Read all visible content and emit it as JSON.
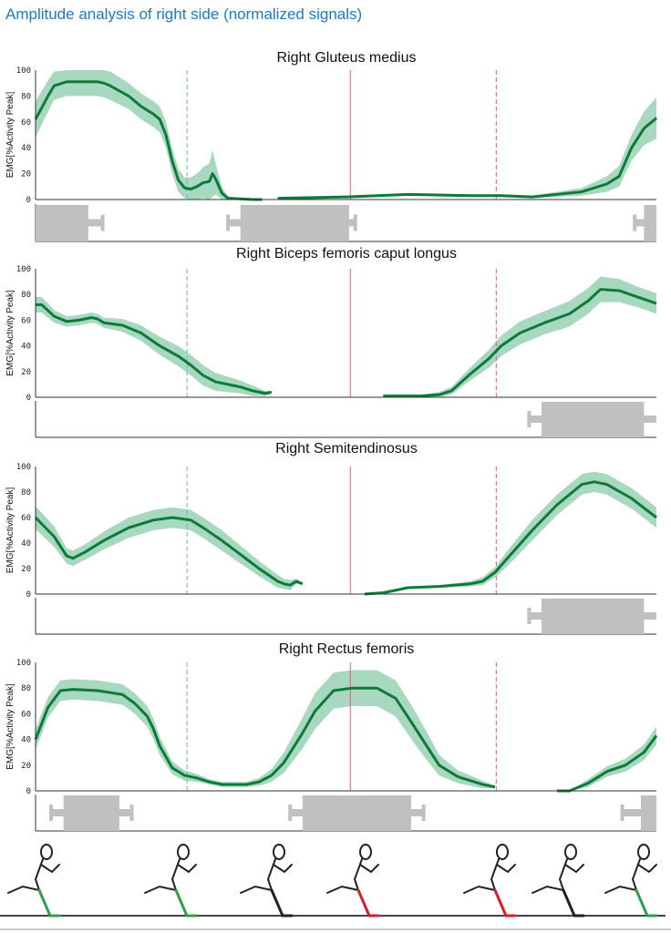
{
  "title": "Amplitude analysis of right side (normalized signals)",
  "chart_data": [
    {
      "type": "line",
      "title": "Right Gluteus medius",
      "ylabel": "EMG[%Activity  Peak]",
      "ylim": [
        0,
        100
      ],
      "yticks": [
        0,
        20,
        40,
        60,
        80,
        100
      ],
      "xlim": [
        0,
        100
      ],
      "markers": {
        "green_dashed": 24.4,
        "red_solid": 50.7,
        "red_dashed": 74.2
      },
      "series": [
        {
          "points": [
            [
              0,
              62,
              14
            ],
            [
              2,
              80,
              12
            ],
            [
              3,
              88,
              11
            ],
            [
              5,
              91,
              11
            ],
            [
              10,
              91,
              11
            ],
            [
              11,
              90,
              11
            ],
            [
              12,
              88,
              11
            ],
            [
              15,
              80,
              10
            ],
            [
              17,
              72,
              10
            ],
            [
              19,
              66,
              10
            ],
            [
              20,
              62,
              10
            ],
            [
              21,
              50,
              10
            ],
            [
              22,
              30,
              10
            ],
            [
              23,
              15,
              9
            ],
            [
              24,
              9,
              8
            ],
            [
              25,
              8,
              9
            ],
            [
              26,
              10,
              10
            ],
            [
              27,
              13,
              12
            ],
            [
              28,
              14,
              14
            ],
            [
              28.5,
              20,
              18
            ],
            [
              29,
              16,
              12
            ],
            [
              30,
              5,
              5
            ],
            [
              31,
              1,
              1
            ],
            [
              35,
              0,
              0
            ],
            [
              36.5,
              0,
              0
            ],
            null,
            [
              39,
              1,
              1
            ],
            [
              50,
              2,
              1
            ],
            [
              60,
              4,
              1
            ],
            [
              70,
              3,
              1
            ],
            [
              75,
              3,
              1
            ],
            [
              80,
              2,
              1
            ],
            [
              84,
              4,
              2
            ],
            [
              88,
              6,
              3
            ],
            [
              92,
              12,
              6
            ],
            [
              94,
              18,
              8
            ],
            [
              96,
              40,
              10
            ],
            [
              98,
              55,
              13
            ],
            [
              100,
              63,
              16
            ]
          ]
        }
      ],
      "activity": [
        {
          "on": [
            0,
            8.5
          ],
          "whisker": [
            0,
            10.8
          ]
        },
        {
          "on": [
            33,
            50.5
          ],
          "whisker": [
            31,
            51.5
          ]
        },
        {
          "on": [
            98,
            100
          ],
          "whisker": [
            96.5,
            100
          ]
        }
      ]
    },
    {
      "type": "line",
      "title": "Right Biceps femoris caput longus",
      "ylabel": "EMG[%Activity  Peak]",
      "ylim": [
        0,
        100
      ],
      "yticks": [
        0,
        20,
        40,
        60,
        80,
        100
      ],
      "xlim": [
        0,
        100
      ],
      "markers": {
        "green_dashed": 24.4,
        "red_solid": 50.7,
        "red_dashed": 74.2
      },
      "series": [
        {
          "points": [
            [
              0,
              72,
              6
            ],
            [
              1,
              72,
              6
            ],
            [
              3,
              63,
              5
            ],
            [
              5,
              59,
              4
            ],
            [
              7,
              60,
              4
            ],
            [
              9,
              62,
              4
            ],
            [
              10,
              61,
              4
            ],
            [
              11,
              58,
              4
            ],
            [
              14,
              56,
              5
            ],
            [
              17,
              50,
              6
            ],
            [
              20,
              40,
              7
            ],
            [
              23,
              32,
              8
            ],
            [
              25,
              25,
              8
            ],
            [
              27,
              17,
              8
            ],
            [
              29,
              12,
              7
            ],
            [
              31,
              10,
              6
            ],
            [
              33,
              8,
              5
            ],
            [
              35,
              5,
              4
            ],
            [
              37,
              3,
              2
            ],
            [
              38,
              4,
              1
            ],
            null,
            [
              56,
              1,
              1
            ],
            [
              62,
              1,
              1
            ],
            [
              65,
              2,
              2
            ],
            [
              67,
              5,
              3
            ],
            [
              70,
              18,
              5
            ],
            [
              73,
              30,
              7
            ],
            [
              75,
              40,
              8
            ],
            [
              78,
              50,
              9
            ],
            [
              82,
              58,
              9
            ],
            [
              86,
              65,
              10
            ],
            [
              89,
              75,
              10
            ],
            [
              91,
              84,
              10
            ],
            [
              94,
              83,
              9
            ],
            [
              97,
              78,
              8
            ],
            [
              100,
              73,
              8
            ]
          ]
        }
      ],
      "activity": [
        {
          "on": [
            81.5,
            98
          ],
          "whisker": [
            79.5,
            100
          ]
        }
      ]
    },
    {
      "type": "line",
      "title": "Right Semitendinosus",
      "ylabel": "EMG[%Activity  Peak]",
      "ylim": [
        0,
        100
      ],
      "yticks": [
        0,
        20,
        40,
        60,
        80,
        100
      ],
      "xlim": [
        0,
        100
      ],
      "markers": {
        "green_dashed": 24.4,
        "red_solid": 50.7,
        "red_dashed": 74.2
      },
      "series": [
        {
          "points": [
            [
              0,
              60,
              9
            ],
            [
              3,
              45,
              8
            ],
            [
              5,
              30,
              6
            ],
            [
              6,
              28,
              6
            ],
            [
              8,
              33,
              6
            ],
            [
              11,
              42,
              7
            ],
            [
              15,
              52,
              8
            ],
            [
              19,
              58,
              8
            ],
            [
              22,
              60,
              8
            ],
            [
              25,
              58,
              8
            ],
            [
              27,
              52,
              8
            ],
            [
              30,
              42,
              8
            ],
            [
              33,
              31,
              7
            ],
            [
              36,
              20,
              6
            ],
            [
              39,
              10,
              5
            ],
            [
              40,
              8,
              4
            ],
            [
              41,
              7,
              4
            ],
            [
              42,
              10,
              2
            ],
            [
              43,
              8,
              1
            ],
            null,
            [
              53,
              0,
              0
            ],
            [
              56,
              1,
              1
            ],
            [
              60,
              5,
              1
            ],
            [
              65,
              6,
              1
            ],
            [
              70,
              8,
              2
            ],
            [
              72,
              10,
              3
            ],
            [
              74,
              17,
              4
            ],
            [
              76,
              28,
              6
            ],
            [
              80,
              50,
              8
            ],
            [
              84,
              70,
              8
            ],
            [
              88,
              86,
              8
            ],
            [
              90,
              88,
              8
            ],
            [
              92,
              86,
              8
            ],
            [
              96,
              75,
              8
            ],
            [
              100,
              60,
              8
            ]
          ]
        }
      ],
      "activity": [
        {
          "on": [
            81.5,
            98
          ],
          "whisker": [
            79.5,
            100
          ]
        }
      ]
    },
    {
      "type": "line",
      "title": "Right Rectus femoris",
      "ylabel": "EMG[%Activity  Peak]",
      "ylim": [
        0,
        100
      ],
      "yticks": [
        0,
        20,
        40,
        60,
        80,
        100
      ],
      "xlim": [
        0,
        100
      ],
      "markers": {
        "green_dashed": 24.4,
        "red_solid": 50.7,
        "red_dashed": 74.2
      },
      "series": [
        {
          "points": [
            [
              0,
              40,
              8
            ],
            [
              2,
              65,
              8
            ],
            [
              4,
              78,
              8
            ],
            [
              6,
              79,
              8
            ],
            [
              10,
              78,
              8
            ],
            [
              14,
              75,
              8
            ],
            [
              16,
              68,
              8
            ],
            [
              18,
              58,
              8
            ],
            [
              19,
              48,
              8
            ],
            [
              20,
              35,
              7
            ],
            [
              22,
              18,
              5
            ],
            [
              24,
              12,
              4
            ],
            [
              26,
              10,
              3
            ],
            [
              28,
              7,
              2
            ],
            [
              30,
              5,
              2
            ],
            [
              34,
              5,
              2
            ],
            [
              36,
              7,
              3
            ],
            [
              38,
              12,
              5
            ],
            [
              40,
              22,
              8
            ],
            [
              43,
              45,
              12
            ],
            [
              45,
              62,
              14
            ],
            [
              48,
              78,
              14
            ],
            [
              51,
              80,
              14
            ],
            [
              55,
              80,
              14
            ],
            [
              58,
              72,
              14
            ],
            [
              61,
              50,
              13
            ],
            [
              63,
              35,
              11
            ],
            [
              65,
              20,
              8
            ],
            [
              68,
              11,
              5
            ],
            [
              70,
              8,
              4
            ],
            [
              72,
              5,
              3
            ],
            [
              74,
              3,
              1
            ],
            null,
            [
              84,
              0,
              0
            ],
            [
              86,
              0,
              0
            ],
            [
              89,
              6,
              3
            ],
            [
              92,
              15,
              4
            ],
            [
              95,
              20,
              5
            ],
            [
              98,
              30,
              6
            ],
            [
              100,
              43,
              7
            ]
          ]
        }
      ],
      "activity": [
        {
          "on": [
            4.5,
            13.5
          ],
          "whisker": [
            2.5,
            15.5
          ]
        },
        {
          "on": [
            43,
            60.5
          ],
          "whisker": [
            41,
            62.5
          ]
        },
        {
          "on": [
            97.5,
            100
          ],
          "whisker": [
            94.5,
            100
          ]
        }
      ]
    }
  ],
  "colors": {
    "title": "#1a7ac6",
    "mean": "#0e7a3a",
    "band": "#a8d8bf",
    "green_marker": "#6fbf95",
    "red_marker": "#e05d7a",
    "activity": "#c0c0c0"
  },
  "runner_figures": {
    "leg_highlight": [
      "green",
      "green",
      "none",
      "red",
      "red",
      "none",
      "green"
    ]
  }
}
